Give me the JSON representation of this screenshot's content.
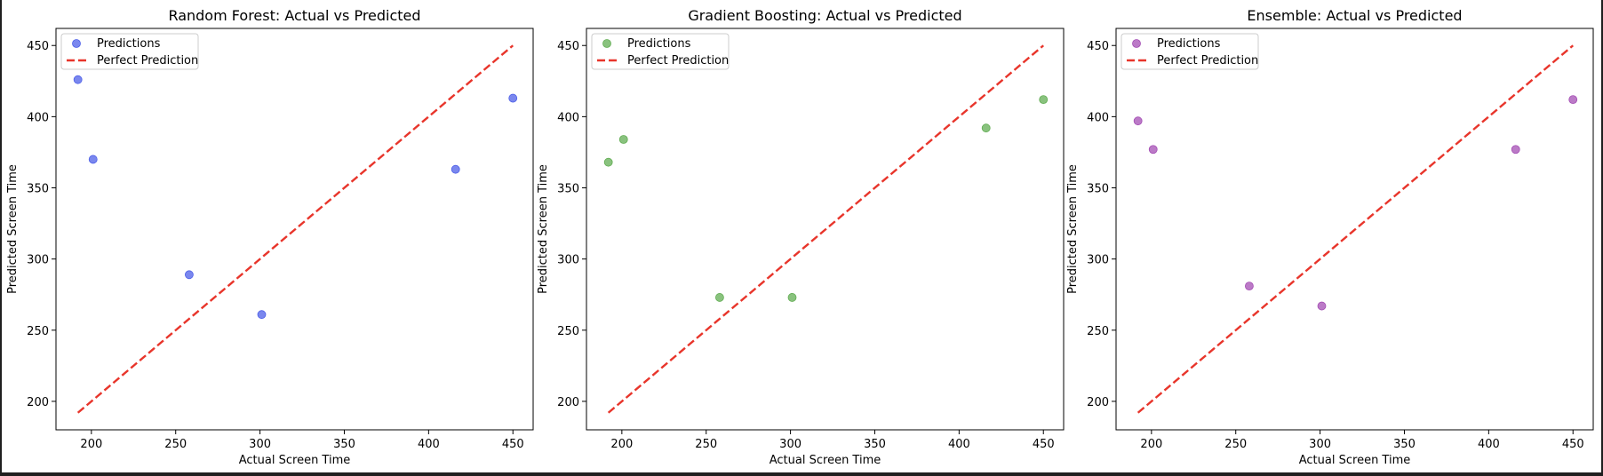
{
  "chart_data": [
    {
      "type": "scatter",
      "title": "Random Forest: Actual vs Predicted",
      "xlabel": "Actual Screen Time",
      "ylabel": "Predicted Screen Time",
      "xlim": [
        179,
        462
      ],
      "ylim": [
        180,
        462
      ],
      "xticks": [
        "200",
        "250",
        "300",
        "350",
        "400",
        "450"
      ],
      "yticks": [
        "200",
        "250",
        "300",
        "350",
        "400",
        "450"
      ],
      "legend": [
        "Predictions",
        "Perfect Prediction"
      ],
      "legend_loc": "upper-left",
      "grid": false,
      "series": [
        {
          "name": "Predictions",
          "color": "#4d5fe8",
          "x": [
            192,
            201,
            258,
            301,
            416,
            450
          ],
          "y": [
            426,
            370,
            289,
            261,
            363,
            413
          ]
        },
        {
          "name": "Perfect Prediction",
          "color": "#e8352b",
          "style": "dashed",
          "x": [
            192,
            450
          ],
          "y": [
            192,
            450
          ]
        }
      ]
    },
    {
      "type": "scatter",
      "title": "Gradient Boosting: Actual vs Predicted",
      "xlabel": "Actual Screen Time",
      "ylabel": "Predicted Screen Time",
      "xlim": [
        179,
        462
      ],
      "ylim": [
        180,
        462
      ],
      "xticks": [
        "200",
        "250",
        "300",
        "350",
        "400",
        "450"
      ],
      "yticks": [
        "200",
        "250",
        "300",
        "350",
        "400",
        "450"
      ],
      "legend": [
        "Predictions",
        "Perfect Prediction"
      ],
      "legend_loc": "upper-left",
      "grid": false,
      "series": [
        {
          "name": "Predictions",
          "color": "#62ad53",
          "x": [
            192,
            201,
            258,
            301,
            416,
            450
          ],
          "y": [
            368,
            384,
            273,
            273,
            392,
            412
          ]
        },
        {
          "name": "Perfect Prediction",
          "color": "#e8352b",
          "style": "dashed",
          "x": [
            192,
            450
          ],
          "y": [
            192,
            450
          ]
        }
      ]
    },
    {
      "type": "scatter",
      "title": "Ensemble: Actual vs Predicted",
      "xlabel": "Actual Screen Time",
      "ylabel": "Predicted Screen Time",
      "xlim": [
        179,
        462
      ],
      "ylim": [
        180,
        462
      ],
      "xticks": [
        "200",
        "250",
        "300",
        "350",
        "400",
        "450"
      ],
      "yticks": [
        "200",
        "250",
        "300",
        "350",
        "400",
        "450"
      ],
      "legend": [
        "Predictions",
        "Perfect Prediction"
      ],
      "legend_loc": "upper-left",
      "grid": false,
      "series": [
        {
          "name": "Predictions",
          "color": "#a44db4",
          "x": [
            192,
            201,
            258,
            301,
            416,
            450
          ],
          "y": [
            397,
            377,
            281,
            267,
            377,
            412
          ]
        },
        {
          "name": "Perfect Prediction",
          "color": "#e8352b",
          "style": "dashed",
          "x": [
            192,
            450
          ],
          "y": [
            192,
            450
          ]
        }
      ]
    }
  ]
}
